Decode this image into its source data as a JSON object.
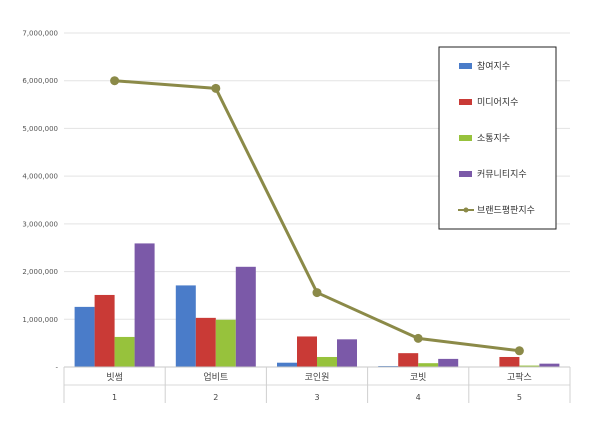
{
  "chart_data": {
    "type": "bar",
    "categories": [
      "빗썸",
      "업비트",
      "코인원",
      "코빗",
      "고팍스"
    ],
    "ranks": [
      "1",
      "2",
      "3",
      "4",
      "5"
    ],
    "ylim": [
      0,
      7000000
    ],
    "yticks": [
      "-",
      "1,000,000",
      "2,000,000",
      "3,000,000",
      "4,000,000",
      "5,000,000",
      "6,000,000",
      "7,000,000"
    ],
    "grid": true,
    "legend_position": "right",
    "series": [
      {
        "name": "참여지수",
        "type": "bar",
        "color": "#4a7cc9",
        "values": [
          1260000,
          1710000,
          90000,
          20000,
          10000
        ]
      },
      {
        "name": "미디어지수",
        "type": "bar",
        "color": "#c93a36",
        "values": [
          1510000,
          1030000,
          640000,
          290000,
          210000
        ]
      },
      {
        "name": "소통지수",
        "type": "bar",
        "color": "#97c23c",
        "values": [
          630000,
          990000,
          210000,
          80000,
          30000
        ]
      },
      {
        "name": "커뮤니티지수",
        "type": "bar",
        "color": "#7b59a8",
        "values": [
          2590000,
          2100000,
          580000,
          170000,
          70000
        ]
      },
      {
        "name": "브랜드평판지수",
        "type": "line",
        "color": "#8b8a48",
        "values": [
          6000000,
          5840000,
          1560000,
          600000,
          340000
        ]
      }
    ]
  }
}
